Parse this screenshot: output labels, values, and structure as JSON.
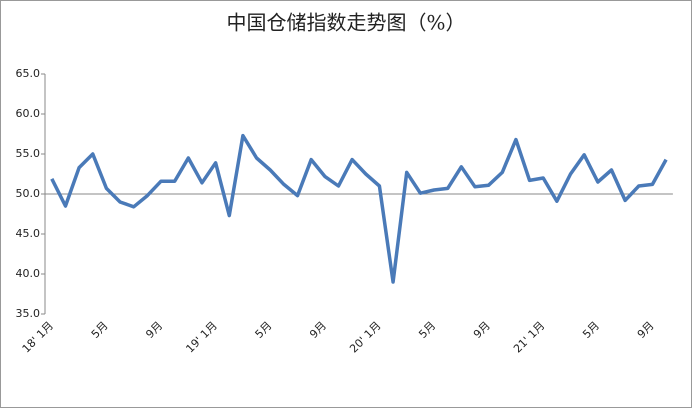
{
  "chart_data": {
    "type": "line",
    "title": "中国仓储指数走势图（%）",
    "categories": [
      "18' 1月",
      null,
      null,
      null,
      "5月",
      null,
      null,
      null,
      "9月",
      null,
      null,
      null,
      "19' 1月",
      null,
      null,
      null,
      "5月",
      null,
      null,
      null,
      "9月",
      null,
      null,
      null,
      "20' 1月",
      null,
      null,
      null,
      "5月",
      null,
      null,
      null,
      "9月",
      null,
      null,
      null,
      "21' 1月",
      null,
      null,
      null,
      "5月",
      null,
      null,
      null,
      "9月",
      null
    ],
    "series": [
      {
        "name": "中国仓储指数",
        "color": "#4a7ab8",
        "values": [
          51.9,
          48.5,
          53.3,
          55.0,
          50.7,
          49.0,
          48.4,
          49.8,
          51.6,
          51.6,
          54.5,
          51.4,
          53.9,
          47.3,
          57.3,
          54.5,
          53.0,
          51.2,
          49.8,
          54.3,
          52.2,
          51.0,
          54.3,
          52.5,
          51.0,
          39.0,
          52.7,
          50.1,
          50.5,
          50.7,
          53.4,
          50.9,
          51.1,
          52.7,
          56.8,
          51.7,
          52.0,
          49.1,
          52.5,
          54.9,
          51.5,
          53.0,
          49.2,
          51.0,
          51.2,
          54.3
        ]
      }
    ],
    "ylim": [
      35,
      65
    ],
    "yticks": [
      {
        "value": 35,
        "label": "35.0"
      },
      {
        "value": 40,
        "label": "40.0"
      },
      {
        "value": 45,
        "label": "45.0"
      },
      {
        "value": 50,
        "label": "50.0"
      },
      {
        "value": 55,
        "label": "55.0"
      },
      {
        "value": 60,
        "label": "60.0"
      },
      {
        "value": 65,
        "label": "65.0"
      }
    ],
    "x_axis_crosses": 50,
    "grid": false
  }
}
